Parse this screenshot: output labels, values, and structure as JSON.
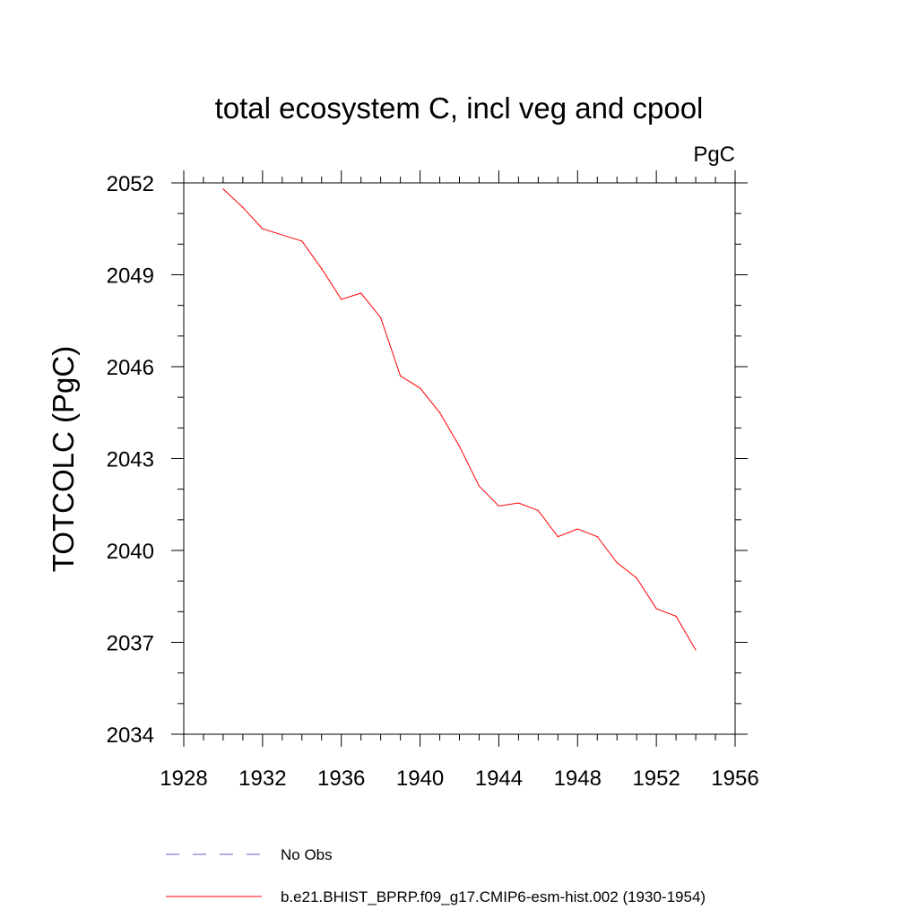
{
  "chart_data": {
    "type": "line",
    "title": "total ecosystem C, incl veg and cpool",
    "units_label": "PgC",
    "xlabel": "",
    "ylabel": "TOTCOLC  (PgC)",
    "xlim": [
      1928,
      1956
    ],
    "ylim": [
      2034,
      2052
    ],
    "xticks": [
      1928,
      1932,
      1936,
      1940,
      1944,
      1948,
      1952,
      1956
    ],
    "yticks": [
      2034,
      2037,
      2040,
      2043,
      2046,
      2049,
      2052
    ],
    "x_minor_step": 1,
    "y_minor_step": 1,
    "grid": false,
    "legend_position": "bottom",
    "series": [
      {
        "name": "b.e21.BHIST_BPRP.f09_g17.CMIP6-esm-hist.002 (1930-1954)",
        "color": "#ff0000",
        "style": "solid",
        "x": [
          1930,
          1931,
          1932,
          1933,
          1934,
          1935,
          1936,
          1937,
          1938,
          1939,
          1940,
          1941,
          1942,
          1943,
          1944,
          1945,
          1946,
          1947,
          1948,
          1949,
          1950,
          1951,
          1952,
          1953,
          1954
        ],
        "y": [
          2051.8,
          2051.2,
          2050.5,
          2050.3,
          2050.1,
          2049.2,
          2048.2,
          2048.4,
          2047.6,
          2045.7,
          2045.3,
          2044.5,
          2043.4,
          2042.1,
          2041.45,
          2041.55,
          2041.3,
          2040.45,
          2040.7,
          2040.45,
          2039.6,
          2039.1,
          2038.1,
          2037.85,
          2036.75
        ]
      }
    ],
    "legend": [
      {
        "label": "No Obs",
        "color": "#6a5acd",
        "style": "dashed"
      },
      {
        "label": "b.e21.BHIST_BPRP.f09_g17.CMIP6-esm-hist.002 (1930-1954)",
        "color": "#ff0000",
        "style": "solid"
      }
    ]
  }
}
